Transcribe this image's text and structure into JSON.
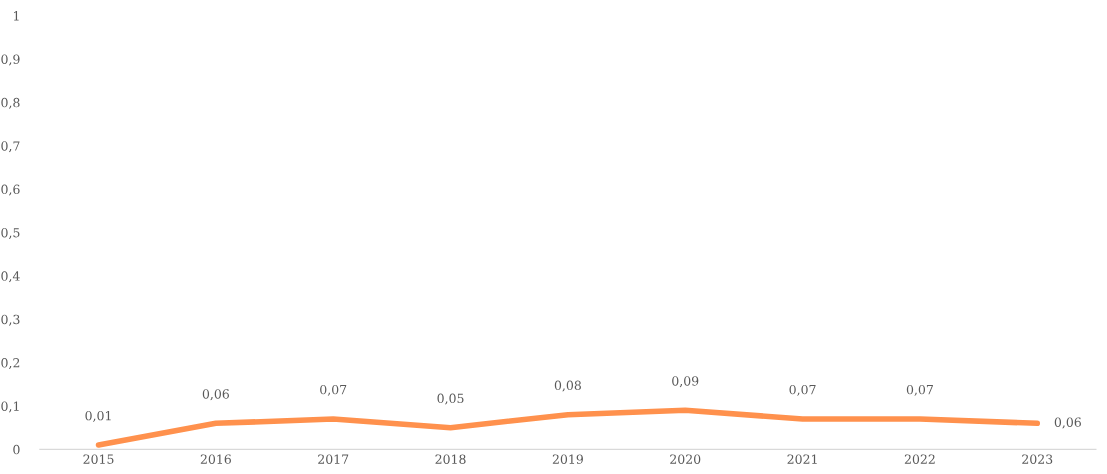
{
  "chart_data": {
    "type": "line",
    "categories": [
      "2015",
      "2016",
      "2017",
      "2018",
      "2019",
      "2020",
      "2021",
      "2022",
      "2023"
    ],
    "series": [
      {
        "color": "#ff914d",
        "values": [
          0.01,
          0.06,
          0.07,
          0.05,
          0.08,
          0.09,
          0.07,
          0.07,
          0.06
        ],
        "value_labels": [
          "0,01",
          "0,06",
          "0,07",
          "0,05",
          "0,08",
          "0,09",
          "0,07",
          "0,07",
          "0,06"
        ]
      }
    ],
    "ylim": [
      0,
      1
    ],
    "yticks": [
      0,
      {
        "value": 0.1,
        "label": "0,1"
      },
      {
        "value": 0.2,
        "label": "0,2"
      },
      {
        "value": 0.3,
        "label": "0,3"
      },
      {
        "value": 0.4,
        "label": "0,4"
      },
      {
        "value": 0.5,
        "label": "0,5"
      },
      {
        "value": 0.6,
        "label": "0,6"
      },
      {
        "value": 0.7,
        "label": "0,7"
      },
      {
        "value": 0.8,
        "label": "0,8"
      },
      {
        "value": 0.9,
        "label": "0,9"
      },
      1
    ],
    "grid": false,
    "marker": "none",
    "line_style": "solid"
  }
}
